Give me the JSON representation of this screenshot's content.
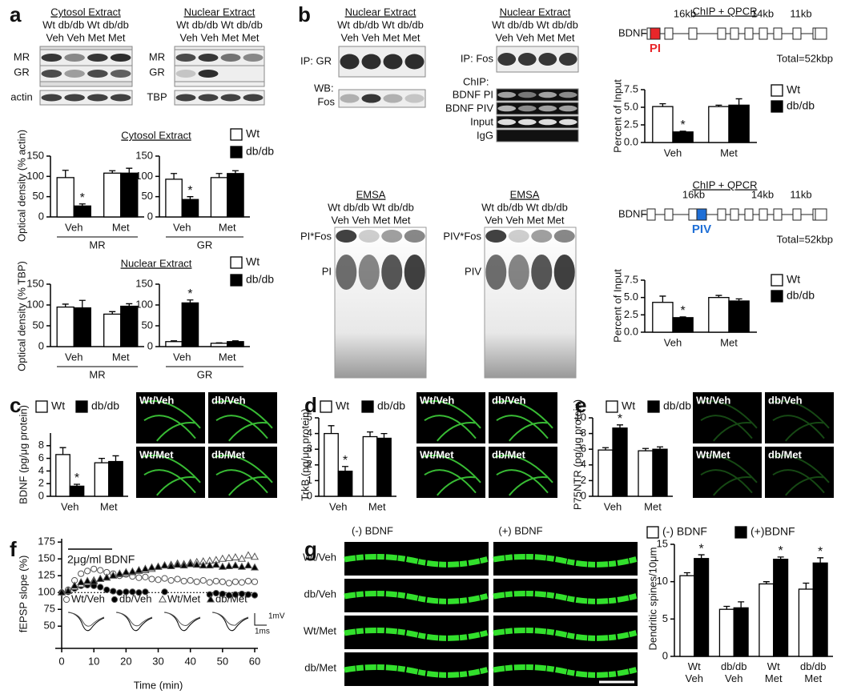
{
  "panel_letters": [
    "a",
    "b",
    "c",
    "d",
    "e",
    "f",
    "g"
  ],
  "blots": {
    "a_cytosol": {
      "title": "Cytosol Extract",
      "header": [
        "Wt db/db Wt db/db",
        "Veh Veh Met Met"
      ],
      "rows": [
        "MR",
        "GR",
        "actin"
      ]
    },
    "a_nuclear": {
      "title": "Nuclear Extract",
      "header": [
        "Wt db/db Wt db/db",
        "Veh Veh Met Met"
      ],
      "rows": [
        "MR",
        "GR",
        "TBP"
      ]
    },
    "b_ip_gr": {
      "title": "Nuclear Extract",
      "header": [
        "Wt db/db Wt db/db",
        "Veh Veh Met Met"
      ],
      "rows": [
        "IP: GR",
        "WB:",
        "Fos"
      ]
    },
    "b_ip_fos": {
      "title": "Nuclear Extract",
      "header": [
        "Wt db/db Wt db/db",
        "Veh Veh Met Met"
      ],
      "rows": [
        "IP: Fos",
        "ChIP:",
        "BDNF PI",
        "BDNF PIV",
        "Input",
        "IgG"
      ]
    },
    "b_emsa_pi": {
      "title": "EMSA",
      "header": [
        "Wt db/db Wt db/db",
        "Veh Veh Met Met"
      ],
      "rows": [
        "PI*Fos",
        "PI"
      ]
    },
    "b_emsa_piv": {
      "title": "EMSA",
      "header": [
        "Wt db/db Wt db/db",
        "Veh Veh Met Met"
      ],
      "rows": [
        "PIV*Fos",
        "PIV"
      ]
    }
  },
  "gene_maps": [
    {
      "title": "ChIP + QPCR",
      "gene": "BDNF",
      "segments": [
        "16kb",
        "14kb",
        "11kb"
      ],
      "promoter": "PI",
      "promoter_color": "#e8262a",
      "total": "Total=52kbp"
    },
    {
      "title": "ChIP + QPCR",
      "gene": "BDNF",
      "segments": [
        "16kb",
        "14kb",
        "11kb"
      ],
      "promoter": "PIV",
      "promoter_color": "#1f6fd6",
      "total": "Total=52kbp"
    }
  ],
  "micrographs": {
    "c": [
      "Wt/Veh",
      "db/Veh",
      "Wt/Met",
      "db/Met"
    ],
    "d": [
      "Wt/Veh",
      "db/Veh",
      "Wt/Met",
      "db/Met"
    ],
    "e": [
      "Wt/Veh",
      "db/Veh",
      "Wt/Met",
      "db/Met"
    ]
  },
  "spine_images": {
    "columns": [
      "(-) BDNF",
      "(+) BDNF"
    ],
    "rows": [
      "Wt/Veh",
      "db/Veh",
      "Wt/Met",
      "db/Met"
    ]
  },
  "chart_data": [
    {
      "type": "bar",
      "title": "Cytosol Extract",
      "ylabel": "Optical density (% actin)",
      "xlabel": "MR",
      "categories": [
        "Veh",
        "Met"
      ],
      "series": [
        {
          "name": "Wt",
          "color": "#ffffff",
          "values": [
            97,
            108
          ],
          "errors": [
            18,
            6
          ]
        },
        {
          "name": "db/db",
          "color": "#000000",
          "values": [
            27,
            108
          ],
          "errors": [
            5,
            12
          ]
        }
      ],
      "ylim": [
        0,
        150
      ],
      "yticks": [
        0,
        50,
        100,
        150
      ],
      "annotations": [
        "*"
      ]
    },
    {
      "type": "bar",
      "xlabel": "GR",
      "categories": [
        "Veh",
        "Met"
      ],
      "series": [
        {
          "color": "#ffffff",
          "values": [
            93,
            97
          ],
          "errors": [
            14,
            10
          ]
        },
        {
          "color": "#000000",
          "values": [
            43,
            107
          ],
          "errors": [
            7,
            7
          ]
        }
      ],
      "ylim": [
        0,
        150
      ],
      "yticks": [
        0,
        50,
        100,
        150
      ],
      "annotations": [
        "*"
      ]
    },
    {
      "type": "bar",
      "title": "Nuclear Extract",
      "ylabel": "Optical density (% TBP)",
      "xlabel": "MR",
      "categories": [
        "Veh",
        "Met"
      ],
      "series": [
        {
          "name": "Wt",
          "color": "#ffffff",
          "values": [
            95,
            78
          ],
          "errors": [
            7,
            6
          ]
        },
        {
          "name": "db/db",
          "color": "#000000",
          "values": [
            93,
            97
          ],
          "errors": [
            18,
            6
          ]
        }
      ],
      "ylim": [
        0,
        150
      ],
      "yticks": [
        0,
        50,
        100,
        150
      ]
    },
    {
      "type": "bar",
      "xlabel": "GR",
      "categories": [
        "Veh",
        "Met"
      ],
      "series": [
        {
          "color": "#ffffff",
          "values": [
            12,
            8
          ],
          "errors": [
            2,
            1
          ]
        },
        {
          "color": "#000000",
          "values": [
            105,
            12
          ],
          "errors": [
            7,
            2
          ]
        }
      ],
      "ylim": [
        0,
        150
      ],
      "yticks": [
        0,
        50,
        100,
        150
      ],
      "annotations": [
        "*"
      ]
    },
    {
      "type": "bar",
      "ylabel": "Percent of Input",
      "categories": [
        "Veh",
        "Met"
      ],
      "series": [
        {
          "name": "Wt",
          "color": "#ffffff",
          "values": [
            5.1,
            5.1
          ],
          "errors": [
            0.4,
            0.2
          ]
        },
        {
          "name": "db/db",
          "color": "#000000",
          "values": [
            1.5,
            5.3
          ],
          "errors": [
            0.1,
            0.9
          ]
        }
      ],
      "ylim": [
        0,
        7.5
      ],
      "yticks": [
        {
          "value": 0,
          "label": "0.0"
        },
        2.5,
        {
          "value": 5,
          "label": "5.0"
        },
        7.5
      ],
      "annotations": [
        "*"
      ]
    },
    {
      "type": "bar",
      "ylabel": "Percent of Input",
      "categories": [
        "Veh",
        "Met"
      ],
      "series": [
        {
          "name": "Wt",
          "color": "#ffffff",
          "values": [
            4.3,
            5.0
          ],
          "errors": [
            0.9,
            0.3
          ]
        },
        {
          "name": "db/db",
          "color": "#000000",
          "values": [
            2.1,
            4.5
          ],
          "errors": [
            0.1,
            0.3
          ]
        }
      ],
      "ylim": [
        0,
        7.5
      ],
      "yticks": [
        {
          "value": 0,
          "label": "0.0"
        },
        2.5,
        {
          "value": 5,
          "label": "5.0"
        },
        7.5
      ],
      "annotations": [
        "*"
      ]
    },
    {
      "type": "bar",
      "ylabel": "BDNF (pg/μg protein)",
      "categories": [
        "Veh",
        "Met"
      ],
      "series": [
        {
          "name": "Wt",
          "color": "#ffffff",
          "values": [
            6.6,
            5.3
          ],
          "errors": [
            1.1,
            0.7
          ]
        },
        {
          "name": "db/db",
          "color": "#000000",
          "values": [
            1.6,
            5.5
          ],
          "errors": [
            0.3,
            0.9
          ]
        }
      ],
      "ylim": [
        0,
        10
      ],
      "yticks": [
        0,
        2,
        4,
        6,
        8
      ],
      "annotations": [
        "*"
      ]
    },
    {
      "type": "bar",
      "ylabel": "TrkB (pg/μg protein)",
      "categories": [
        "Veh",
        "Met"
      ],
      "series": [
        {
          "name": "Wt",
          "color": "#ffffff",
          "values": [
            4.0,
            3.8
          ],
          "errors": [
            0.5,
            0.3
          ]
        },
        {
          "name": "db/db",
          "color": "#000000",
          "values": [
            1.6,
            3.7
          ],
          "errors": [
            0.3,
            0.3
          ]
        }
      ],
      "ylim": [
        0,
        5
      ],
      "yticks": [
        0,
        1,
        2,
        3,
        4,
        5
      ],
      "annotations": [
        "*"
      ]
    },
    {
      "type": "bar",
      "ylabel": "P75NTR (pg/μg protein)",
      "categories": [
        "Veh",
        "Met"
      ],
      "series": [
        {
          "name": "Wt",
          "color": "#ffffff",
          "values": [
            5.9,
            5.8
          ],
          "errors": [
            0.3,
            0.3
          ]
        },
        {
          "name": "db/db",
          "color": "#000000",
          "values": [
            8.7,
            6.0
          ],
          "errors": [
            0.4,
            0.3
          ]
        }
      ],
      "ylim": [
        0,
        10
      ],
      "yticks": [
        0,
        2,
        4,
        6,
        8,
        10
      ],
      "annotations": [
        "*"
      ]
    },
    {
      "type": "scatter",
      "xlabel": "Time (min)",
      "ylabel": "fEPSP slope (%)",
      "annotation": "2μg/ml BDNF",
      "scale_labels": [
        "1mV",
        "1ms"
      ],
      "hline": 100,
      "x": [
        0,
        2,
        4,
        6,
        8,
        10,
        12,
        14,
        16,
        18,
        20,
        22,
        24,
        26,
        28,
        30,
        32,
        34,
        36,
        38,
        40,
        42,
        44,
        46,
        48,
        50,
        52,
        54,
        56,
        58,
        60
      ],
      "series": [
        {
          "name": "Wt/Veh",
          "marker": "circle",
          "filled": false,
          "values": [
            100,
            104,
            118,
            128,
            132,
            135,
            133,
            130,
            128,
            125,
            127,
            124,
            122,
            123,
            120,
            119,
            121,
            118,
            120,
            117,
            118,
            116,
            118,
            115,
            117,
            116,
            114,
            116,
            115,
            117,
            116
          ]
        },
        {
          "name": "db/Veh",
          "marker": "circle",
          "filled": true,
          "values": [
            100,
            101,
            106,
            110,
            111,
            110,
            108,
            104,
            102,
            100,
            101,
            101,
            100,
            101,
            null,
            null,
            101,
            null,
            null,
            null,
            null,
            null,
            null,
            97,
            99,
            98,
            96,
            97,
            98,
            97,
            96
          ]
        },
        {
          "name": "Wt/Met",
          "marker": "triangle",
          "filled": false,
          "values": [
            100,
            103,
            108,
            112,
            115,
            118,
            120,
            122,
            125,
            127,
            128,
            130,
            132,
            133,
            135,
            138,
            140,
            141,
            143,
            142,
            144,
            145,
            146,
            147,
            148,
            150,
            151,
            152,
            150,
            155,
            153
          ]
        },
        {
          "name": "db/Met",
          "marker": "triangle",
          "filled": true,
          "values": [
            100,
            102,
            110,
            115,
            117,
            116,
            120,
            122,
            125,
            128,
            130,
            131,
            133,
            135,
            137,
            138,
            140,
            139,
            141,
            140,
            142,
            141,
            140,
            140,
            141,
            138,
            139,
            140,
            138,
            140,
            137
          ]
        }
      ],
      "xlim": [
        -2,
        60
      ],
      "xticks": [
        0,
        10,
        20,
        30,
        40,
        50,
        60
      ],
      "ylim": [
        17,
        180
      ],
      "yticks": [
        50,
        75,
        100,
        125,
        150,
        175
      ]
    },
    {
      "type": "bar",
      "ylabel": "Dendritic spines/10μm",
      "categories": [
        "Wt\nVeh",
        "db/db\nVeh",
        "Wt\nMet",
        "db/db\nMet"
      ],
      "series": [
        {
          "name": "(-) BDNF",
          "color": "#ffffff",
          "values": [
            10.8,
            6.3,
            9.7,
            9.0
          ],
          "errors": [
            0.4,
            0.4,
            0.3,
            0.8
          ]
        },
        {
          "name": "(+)BDNF",
          "color": "#000000",
          "values": [
            13.1,
            6.5,
            13.0,
            12.5
          ],
          "errors": [
            0.5,
            0.8,
            0.3,
            0.7
          ]
        }
      ],
      "ylim": [
        0,
        15
      ],
      "yticks": [
        0,
        5,
        10,
        15
      ],
      "annotations": [
        "*",
        "*",
        "*"
      ]
    }
  ]
}
